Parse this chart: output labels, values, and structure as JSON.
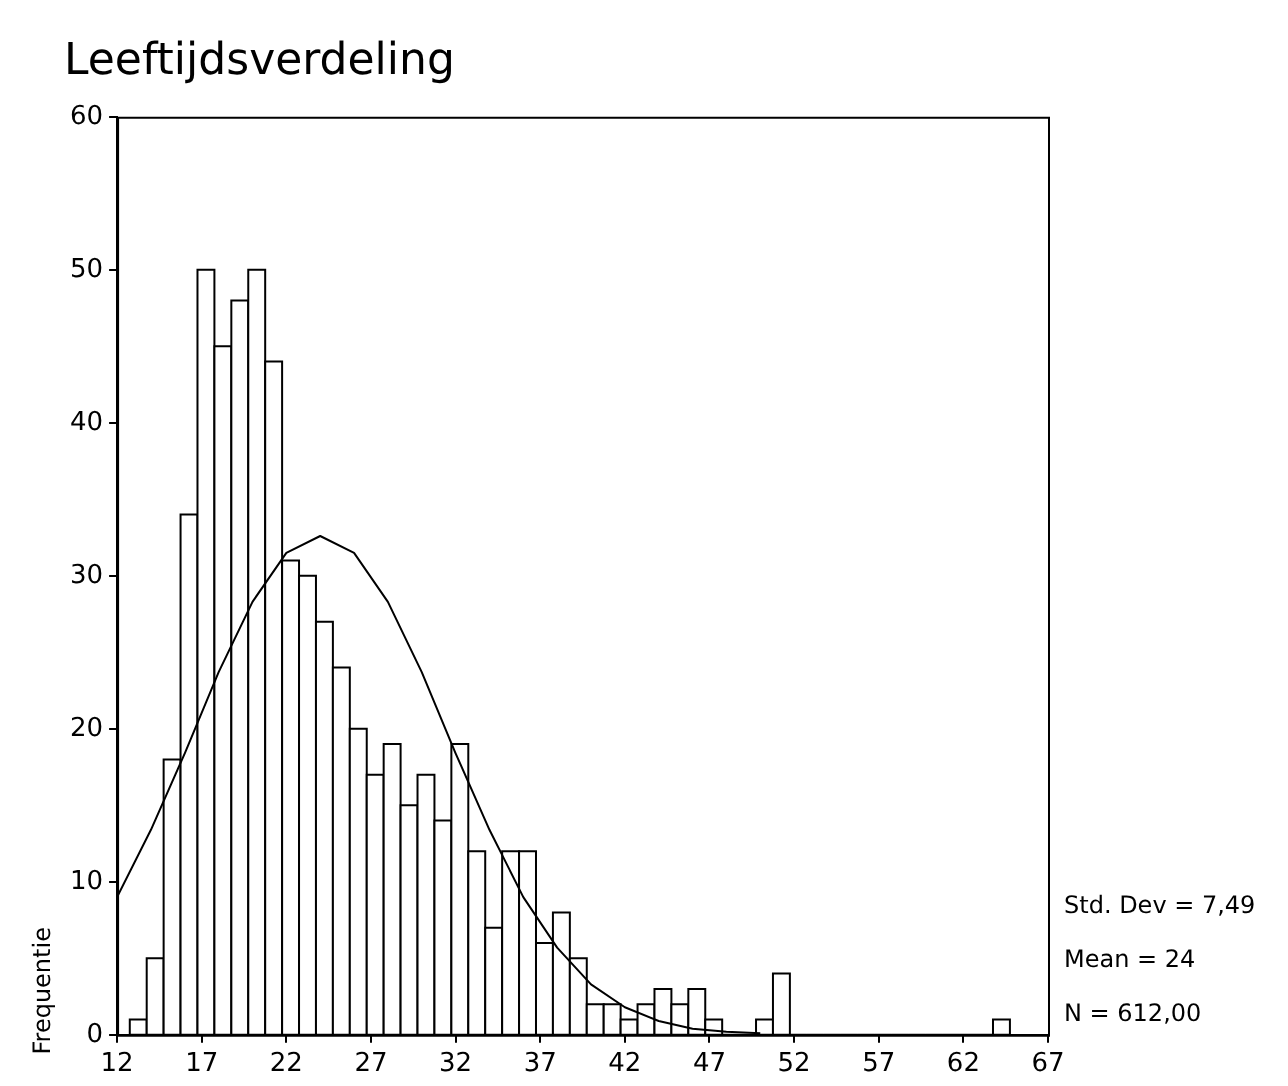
{
  "chart_data": {
    "type": "histogram",
    "title": "Leeftijdsverdeling",
    "ylabel": "Frequentie",
    "bins": [
      12.75,
      13.75,
      14.75,
      15.75,
      16.75,
      17.75,
      18.75,
      19.75,
      20.75,
      21.75,
      22.75,
      23.75,
      24.75,
      25.75,
      26.75,
      27.75,
      28.75,
      29.75,
      30.75,
      31.75,
      32.75,
      33.75,
      34.75,
      35.75,
      36.75,
      37.75,
      38.75,
      39.75,
      40.75,
      41.75,
      42.75,
      43.75,
      44.75,
      45.75,
      46.75,
      47.75,
      48.75,
      49.75,
      50.75,
      51.75,
      52.75,
      53.75,
      54.75,
      55.75,
      56.75,
      57.75,
      58.75,
      59.75,
      60.75,
      61.75,
      62.75,
      63.75,
      64.75
    ],
    "values": [
      1,
      5,
      18,
      34,
      50,
      45,
      48,
      50,
      44,
      31,
      30,
      27,
      24,
      20,
      17,
      19,
      15,
      17,
      14,
      19,
      12,
      7,
      12,
      12,
      6,
      8,
      5,
      2,
      2,
      1,
      2,
      3,
      2,
      3,
      1,
      0,
      0,
      1,
      4,
      0,
      0,
      0,
      0,
      0,
      0,
      0,
      0,
      0,
      0,
      0,
      0,
      1
    ],
    "color": "#ffffff",
    "series": [
      {
        "type": "line",
        "color": "#000000",
        "x": [
          12,
          14,
          16,
          18,
          20,
          22,
          24,
          26,
          28,
          30,
          32,
          34,
          36,
          38,
          40,
          42,
          44,
          46,
          48,
          50
        ],
        "values": [
          9.0,
          13.4,
          18.4,
          23.7,
          28.3,
          31.5,
          32.6,
          31.5,
          28.3,
          23.7,
          18.4,
          13.4,
          9.0,
          5.7,
          3.3,
          1.8,
          0.9,
          0.4,
          0.2,
          0.1
        ]
      }
    ],
    "marker": "none",
    "xlim": [
      12,
      67
    ],
    "xticks": [
      12,
      17,
      22,
      27,
      32,
      37,
      42,
      47,
      52,
      57,
      62,
      67
    ],
    "ylim": [
      0,
      60
    ],
    "yticks": [
      0,
      10,
      20,
      30,
      40,
      50,
      60
    ],
    "grid": false,
    "legend": false,
    "annotations": [
      "Std. Dev = 7,49",
      "Mean = 24",
      "N = 612,00"
    ]
  }
}
